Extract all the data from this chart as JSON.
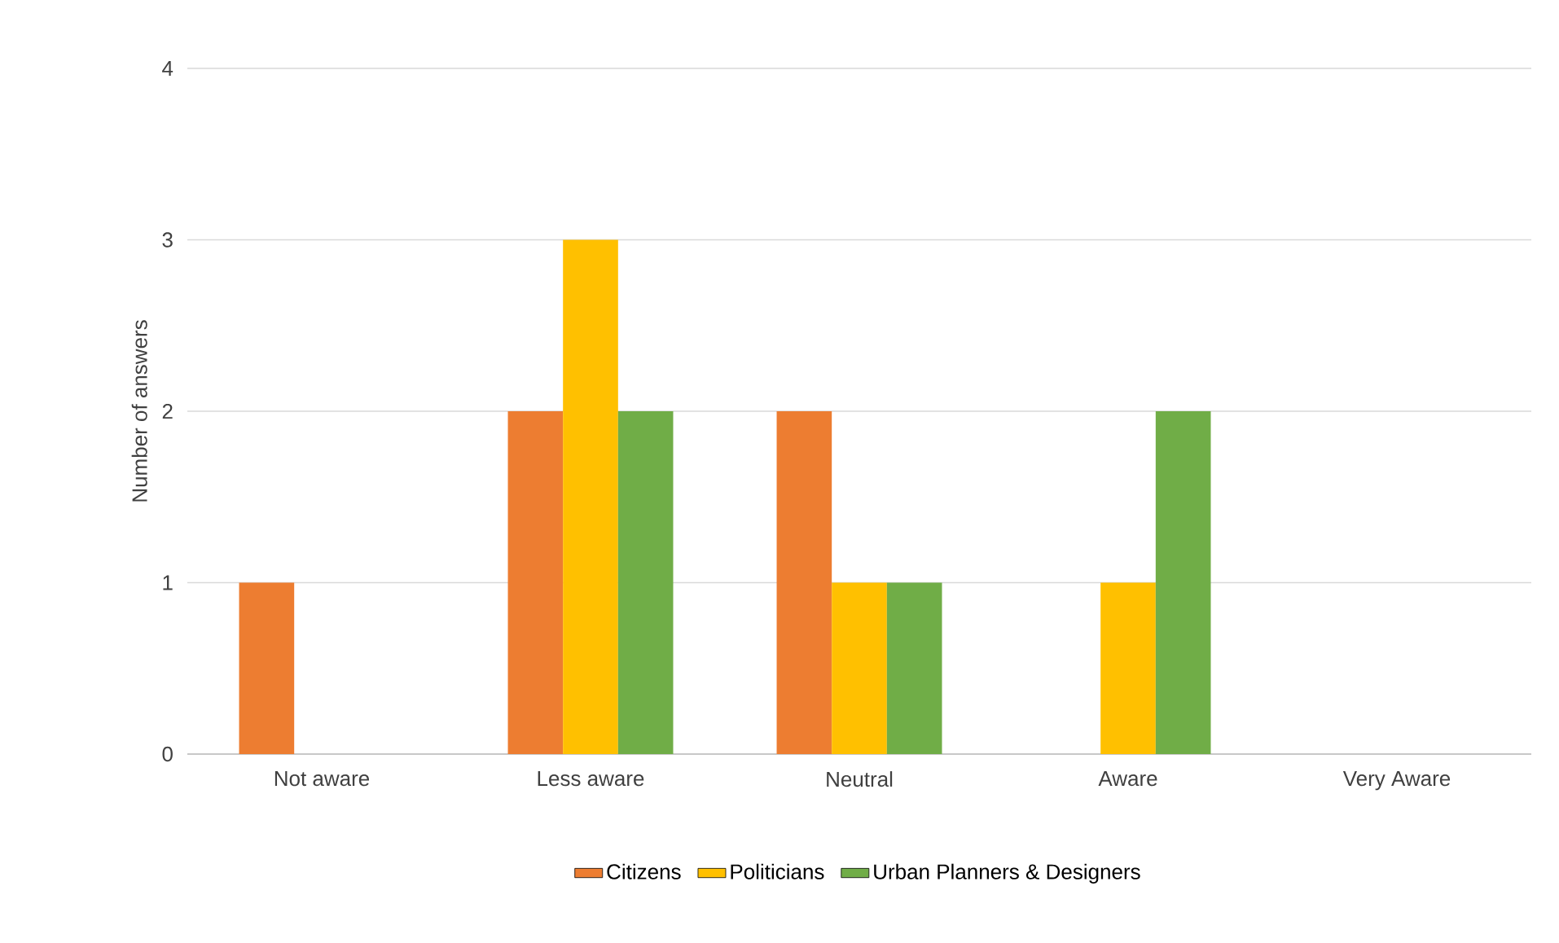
{
  "chart_data": {
    "type": "bar",
    "ylabel": "Number of answers",
    "categories": [
      "Not aware",
      "Less aware",
      "Neutral",
      "Aware",
      "Very Aware"
    ],
    "series": [
      {
        "name": "Citizens",
        "color": "#ed7d31",
        "values": [
          1,
          2,
          2,
          0,
          0
        ]
      },
      {
        "name": "Politicians",
        "color": "#ffc000",
        "values": [
          0,
          3,
          1,
          1,
          0
        ]
      },
      {
        "name": "Urban Planners & Designers",
        "color": "#70ad47",
        "values": [
          0,
          2,
          1,
          2,
          0
        ]
      }
    ],
    "ylim": [
      0,
      4
    ],
    "yticks": [
      0,
      1,
      2,
      3,
      4
    ],
    "grid": "y",
    "legend": "bottom"
  }
}
